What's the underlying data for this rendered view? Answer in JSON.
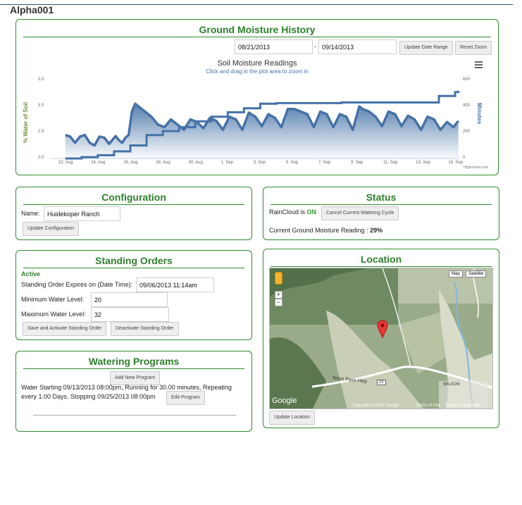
{
  "device": {
    "title": "Alpha001"
  },
  "history": {
    "title": "Ground Moisture History",
    "start_date": "08/21/2013",
    "separator": "-",
    "end_date": "09/14/2013",
    "update_range_label": "Update Date Range",
    "reset_zoom_label": "Reset Zoom",
    "menu_icon": "hamburger-icon",
    "credit": "Highcharts.com"
  },
  "chart_data": {
    "type": "area",
    "title": "Soil Moisture Readings",
    "subtitle": "Click and drag in the plot area to zoom in",
    "ylabel": "% Water of Soil",
    "y2label": "Minutes",
    "yticks": [
      "3.5",
      "3.0",
      "2.5",
      "2.0"
    ],
    "y2ticks": [
      "600",
      "400",
      "200",
      "0"
    ],
    "ylim": [
      2.0,
      3.5
    ],
    "y2lim": [
      0,
      600
    ],
    "xticks": [
      "22. Aug",
      "24. Aug",
      "26. Aug",
      "28. Aug",
      "30. Aug",
      "1. Sep",
      "3. Sep",
      "5. Sep",
      "7. Sep",
      "9. Sep",
      "11. Sep",
      "13. Sep",
      "15. Sep"
    ],
    "x_range_days": [
      0,
      25.2
    ],
    "series": [
      {
        "name": "% Water of Soil",
        "color": "#4572a7",
        "points": [
          [
            0.9,
            2.45
          ],
          [
            1.2,
            2.42
          ],
          [
            1.5,
            2.3
          ],
          [
            1.8,
            2.42
          ],
          [
            2.1,
            2.45
          ],
          [
            2.4,
            2.3
          ],
          [
            2.7,
            2.25
          ],
          [
            3.0,
            2.42
          ],
          [
            3.3,
            2.4
          ],
          [
            3.6,
            2.28
          ],
          [
            4.0,
            2.43
          ],
          [
            4.2,
            2.35
          ],
          [
            4.4,
            2.3
          ],
          [
            4.6,
            2.4
          ],
          [
            4.8,
            2.45
          ],
          [
            5.0,
            2.9
          ],
          [
            5.2,
            3.05
          ],
          [
            5.4,
            3.0
          ],
          [
            5.8,
            2.9
          ],
          [
            6.2,
            2.8
          ],
          [
            6.6,
            2.65
          ],
          [
            7.0,
            2.6
          ],
          [
            7.4,
            2.75
          ],
          [
            7.8,
            2.65
          ],
          [
            8.2,
            2.55
          ],
          [
            8.6,
            2.75
          ],
          [
            9.0,
            2.7
          ],
          [
            9.4,
            2.58
          ],
          [
            9.8,
            2.78
          ],
          [
            10.2,
            2.72
          ],
          [
            10.6,
            2.55
          ],
          [
            11.0,
            2.8
          ],
          [
            11.4,
            2.75
          ],
          [
            11.8,
            2.55
          ],
          [
            12.2,
            2.88
          ],
          [
            12.6,
            2.8
          ],
          [
            13.0,
            2.62
          ],
          [
            13.4,
            2.85
          ],
          [
            13.8,
            2.78
          ],
          [
            14.2,
            2.6
          ],
          [
            14.6,
            2.95
          ],
          [
            15.0,
            2.95
          ],
          [
            15.4,
            2.9
          ],
          [
            15.8,
            2.85
          ],
          [
            16.2,
            2.6
          ],
          [
            16.6,
            2.9
          ],
          [
            17.0,
            2.85
          ],
          [
            17.4,
            2.6
          ],
          [
            17.8,
            2.85
          ],
          [
            18.2,
            2.8
          ],
          [
            18.6,
            2.55
          ],
          [
            19.0,
            3.0
          ],
          [
            19.2,
            2.95
          ],
          [
            19.6,
            2.9
          ],
          [
            20.0,
            2.8
          ],
          [
            20.4,
            2.62
          ],
          [
            20.8,
            2.9
          ],
          [
            21.2,
            2.85
          ],
          [
            21.6,
            2.62
          ],
          [
            22.0,
            2.82
          ],
          [
            22.4,
            2.75
          ],
          [
            22.8,
            2.55
          ],
          [
            23.2,
            2.8
          ],
          [
            23.6,
            2.75
          ],
          [
            24.0,
            2.55
          ],
          [
            24.4,
            2.7
          ],
          [
            24.8,
            2.6
          ],
          [
            25.1,
            2.72
          ]
        ]
      },
      {
        "name": "Minutes",
        "color": "#4572a7",
        "points": [
          [
            0.9,
            0
          ],
          [
            1.9,
            10
          ],
          [
            2.9,
            25
          ],
          [
            3.9,
            55
          ],
          [
            4.9,
            100
          ],
          [
            5.9,
            180
          ],
          [
            6.9,
            210
          ],
          [
            7.9,
            240
          ],
          [
            8.9,
            285
          ],
          [
            9.9,
            320
          ],
          [
            10.9,
            355
          ],
          [
            11.9,
            385
          ],
          [
            12.9,
            420
          ],
          [
            13.9,
            425
          ],
          [
            16.9,
            425
          ],
          [
            17.9,
            430
          ],
          [
            22.9,
            430
          ],
          [
            23.9,
            480
          ],
          [
            24.9,
            510
          ],
          [
            25.1,
            520
          ]
        ]
      }
    ]
  },
  "configuration": {
    "title": "Configuration",
    "name_label": "Name:",
    "name_value": "Huidekoper Ranch",
    "update_label": "Update Configuration"
  },
  "status": {
    "title": "Status",
    "raincloud_label": "RainCloud is",
    "raincloud_state": "ON",
    "cancel_label": "Cancel Current Watering Cycle",
    "moisture_label": "Current Ground Moisture Reading :",
    "moisture_value": "29%"
  },
  "standing_orders": {
    "title": "Standing Orders",
    "active_label": "Active",
    "expires_label": "Standing Order Expires on (Date Time):",
    "expires_value": "09/06/2013 11:14am",
    "min_label": "Minimum Water Level:",
    "min_value": "20",
    "max_label": "Maximum Water Level:",
    "max_value": "32",
    "save_label": "Save and Activate Standing Order",
    "deactivate_label": "Deactivate Standing Order"
  },
  "watering_programs": {
    "title": "Watering Programs",
    "add_label": "Add New Program",
    "program_line1": "Water Starting 09/13/2013 08:00pm, Running for 30.00 minutes, Repeating",
    "program_line2": "every 1.00 Days. Stopping 09/25/2013 08:00pm",
    "edit_label": "Edit Program"
  },
  "location": {
    "title": "Location",
    "map_btn": "Map",
    "satellite_btn": "Satellite",
    "zoom_in": "+",
    "zoom_out": "−",
    "pegman_icon": "pegman-icon",
    "marker_icon": "map-marker-icon",
    "road_label": "Teton Pass Hwy",
    "town_label": "WILSON",
    "route_label": "22",
    "google_label": "Google",
    "map_data": "Map data ©2013 Google",
    "terms": "Terms of Use",
    "report": "Report a map error",
    "update_label": "Update Location"
  }
}
